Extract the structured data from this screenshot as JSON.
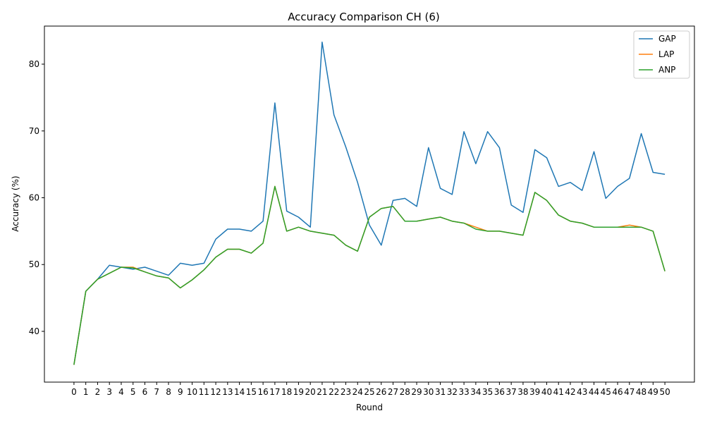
{
  "chart_data": {
    "type": "line",
    "title": "Accuracy Comparison CH (6)",
    "xlabel": "Round",
    "ylabel": "Accuracy (%)",
    "x": [
      0,
      1,
      2,
      3,
      4,
      5,
      6,
      7,
      8,
      9,
      10,
      11,
      12,
      13,
      14,
      15,
      16,
      17,
      18,
      19,
      20,
      21,
      22,
      23,
      24,
      25,
      26,
      27,
      28,
      29,
      30,
      31,
      32,
      33,
      34,
      35,
      36,
      37,
      38,
      39,
      40,
      41,
      42,
      43,
      44,
      45,
      46,
      47,
      48,
      49,
      50
    ],
    "xlim": [
      -2.5,
      52.5
    ],
    "ylim": [
      32.4,
      85.7
    ],
    "yticks": [
      40,
      50,
      60,
      70,
      80
    ],
    "grid": false,
    "legend": "top-right",
    "series": [
      {
        "name": "GAP",
        "color": "#1f77b4",
        "values": [
          35.0,
          46.0,
          47.8,
          49.9,
          49.6,
          49.3,
          49.6,
          49.0,
          48.4,
          50.2,
          49.9,
          50.2,
          53.8,
          55.3,
          55.3,
          55.0,
          56.5,
          74.2,
          58.0,
          57.1,
          55.6,
          83.3,
          72.4,
          67.6,
          62.3,
          55.9,
          52.9,
          59.6,
          59.9,
          58.7,
          67.5,
          61.4,
          60.5,
          69.9,
          65.1,
          69.9,
          67.5,
          58.9,
          57.8,
          67.2,
          66.0,
          61.7,
          62.3,
          61.1,
          66.9,
          59.9,
          61.7,
          62.9,
          69.6,
          63.8,
          63.5
        ]
      },
      {
        "name": "LAP",
        "color": "#ff7f0e",
        "values": [
          35.0,
          46.0,
          47.8,
          48.7,
          49.6,
          49.6,
          48.9,
          48.3,
          48.0,
          46.5,
          47.7,
          49.2,
          51.1,
          52.3,
          52.3,
          51.7,
          53.2,
          61.7,
          55.0,
          55.6,
          55.0,
          54.7,
          54.4,
          52.9,
          52.0,
          57.1,
          58.4,
          58.7,
          56.5,
          56.5,
          56.8,
          57.1,
          56.5,
          56.2,
          55.6,
          55.0,
          55.0,
          54.7,
          54.4,
          60.8,
          59.6,
          57.4,
          56.5,
          56.2,
          55.6,
          55.6,
          55.6,
          55.9,
          55.6,
          55.0,
          49.0
        ]
      },
      {
        "name": "ANP",
        "color": "#2ca02c",
        "values": [
          35.0,
          46.0,
          47.8,
          48.7,
          49.6,
          49.5,
          48.9,
          48.3,
          48.0,
          46.5,
          47.7,
          49.2,
          51.1,
          52.3,
          52.3,
          51.7,
          53.2,
          61.7,
          55.0,
          55.6,
          55.0,
          54.7,
          54.4,
          52.9,
          52.0,
          57.1,
          58.4,
          58.7,
          56.5,
          56.5,
          56.8,
          57.1,
          56.5,
          56.2,
          55.3,
          55.0,
          55.0,
          54.7,
          54.4,
          60.8,
          59.6,
          57.4,
          56.5,
          56.2,
          55.6,
          55.6,
          55.6,
          55.6,
          55.6,
          55.0,
          49.0
        ]
      }
    ]
  }
}
